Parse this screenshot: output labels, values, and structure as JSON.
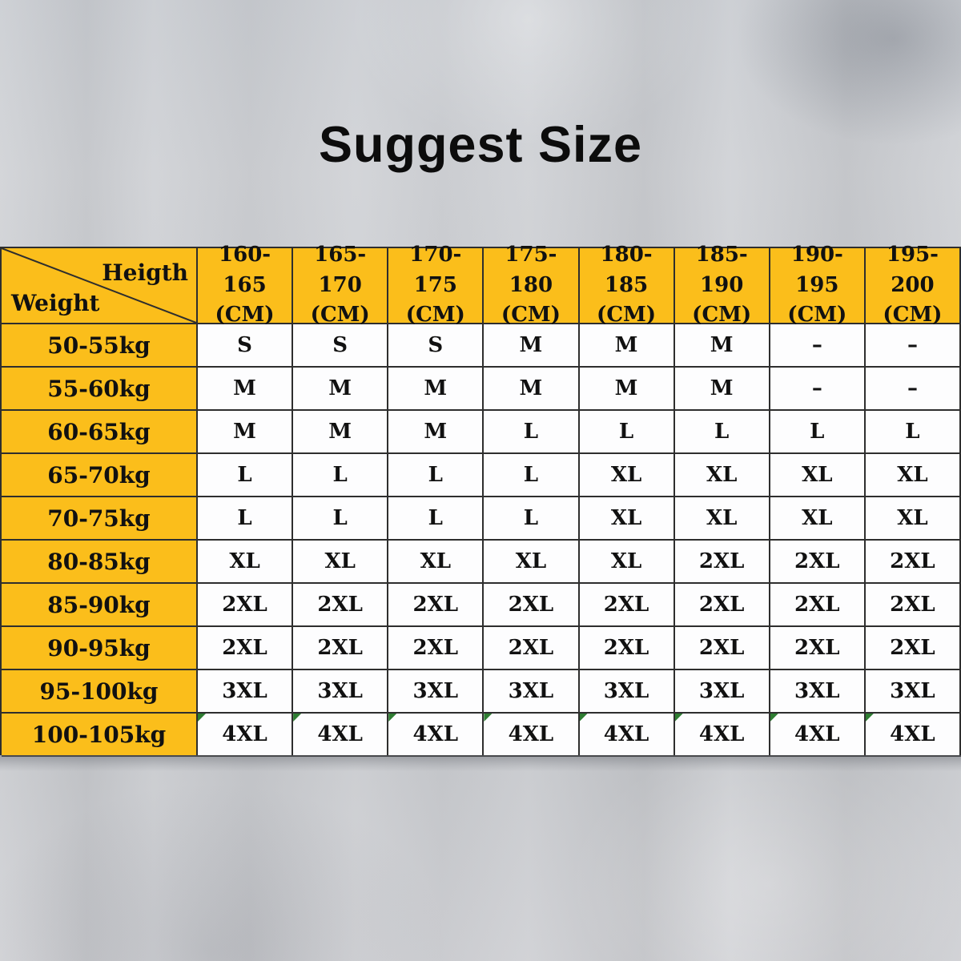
{
  "title": "Suggest Size",
  "table": {
    "corner": {
      "top_label": "Heigth",
      "bottom_label": "Weight"
    },
    "height_columns": [
      {
        "range": "160-165",
        "unit": "(CM)"
      },
      {
        "range": "165-170",
        "unit": "(CM)"
      },
      {
        "range": "170-175",
        "unit": "(CM)"
      },
      {
        "range": "175-180",
        "unit": "(CM)"
      },
      {
        "range": "180-185",
        "unit": "(CM)"
      },
      {
        "range": "185-190",
        "unit": "(CM)"
      },
      {
        "range": "190-195",
        "unit": "(CM)"
      },
      {
        "range": "195-200",
        "unit": "(CM)"
      }
    ],
    "rows": [
      {
        "weight": "50-55kg",
        "sizes": [
          "S",
          "S",
          "S",
          "M",
          "M",
          "M",
          "–",
          "–"
        ],
        "marker": false
      },
      {
        "weight": "55-60kg",
        "sizes": [
          "M",
          "M",
          "M",
          "M",
          "M",
          "M",
          "–",
          "–"
        ],
        "marker": false
      },
      {
        "weight": "60-65kg",
        "sizes": [
          "M",
          "M",
          "M",
          "L",
          "L",
          "L",
          "L",
          "L"
        ],
        "marker": false
      },
      {
        "weight": "65-70kg",
        "sizes": [
          "L",
          "L",
          "L",
          "L",
          "XL",
          "XL",
          "XL",
          "XL"
        ],
        "marker": false
      },
      {
        "weight": "70-75kg",
        "sizes": [
          "L",
          "L",
          "L",
          "L",
          "XL",
          "XL",
          "XL",
          "XL"
        ],
        "marker": false
      },
      {
        "weight": "80-85kg",
        "sizes": [
          "XL",
          "XL",
          "XL",
          "XL",
          "XL",
          "2XL",
          "2XL",
          "2XL"
        ],
        "marker": false
      },
      {
        "weight": "85-90kg",
        "sizes": [
          "2XL",
          "2XL",
          "2XL",
          "2XL",
          "2XL",
          "2XL",
          "2XL",
          "2XL"
        ],
        "marker": false
      },
      {
        "weight": "90-95kg",
        "sizes": [
          "2XL",
          "2XL",
          "2XL",
          "2XL",
          "2XL",
          "2XL",
          "2XL",
          "2XL"
        ],
        "marker": false
      },
      {
        "weight": "95-100kg",
        "sizes": [
          "3XL",
          "3XL",
          "3XL",
          "3XL",
          "3XL",
          "3XL",
          "3XL",
          "3XL"
        ],
        "marker": false
      },
      {
        "weight": "100-105kg",
        "sizes": [
          "4XL",
          "4XL",
          "4XL",
          "4XL",
          "4XL",
          "4XL",
          "4XL",
          "4XL"
        ],
        "marker": true
      }
    ]
  },
  "colors": {
    "header_yellow": "#fbbe1b",
    "cell_white": "#fdfdfe",
    "border": "#2e2e2e",
    "text": "#111111",
    "marker_green": "#2e7d32"
  },
  "chart_data": {
    "type": "table",
    "title": "Suggest Size",
    "column_axis_label": "Heigth",
    "row_axis_label": "Weight",
    "columns": [
      "160-165 (CM)",
      "165-170 (CM)",
      "170-175 (CM)",
      "175-180 (CM)",
      "180-185 (CM)",
      "185-190 (CM)",
      "190-195 (CM)",
      "195-200 (CM)"
    ],
    "row_labels": [
      "50-55kg",
      "55-60kg",
      "60-65kg",
      "65-70kg",
      "70-75kg",
      "80-85kg",
      "85-90kg",
      "90-95kg",
      "95-100kg",
      "100-105kg"
    ],
    "values": [
      [
        "S",
        "S",
        "S",
        "M",
        "M",
        "M",
        "–",
        "–"
      ],
      [
        "M",
        "M",
        "M",
        "M",
        "M",
        "M",
        "–",
        "–"
      ],
      [
        "M",
        "M",
        "M",
        "L",
        "L",
        "L",
        "L",
        "L"
      ],
      [
        "L",
        "L",
        "L",
        "L",
        "XL",
        "XL",
        "XL",
        "XL"
      ],
      [
        "L",
        "L",
        "L",
        "L",
        "XL",
        "XL",
        "XL",
        "XL"
      ],
      [
        "XL",
        "XL",
        "XL",
        "XL",
        "XL",
        "2XL",
        "2XL",
        "2XL"
      ],
      [
        "2XL",
        "2XL",
        "2XL",
        "2XL",
        "2XL",
        "2XL",
        "2XL",
        "2XL"
      ],
      [
        "2XL",
        "2XL",
        "2XL",
        "2XL",
        "2XL",
        "2XL",
        "2XL",
        "2XL"
      ],
      [
        "3XL",
        "3XL",
        "3XL",
        "3XL",
        "3XL",
        "3XL",
        "3XL",
        "3XL"
      ],
      [
        "4XL",
        "4XL",
        "4XL",
        "4XL",
        "4XL",
        "4XL",
        "4XL",
        "4XL"
      ]
    ]
  }
}
